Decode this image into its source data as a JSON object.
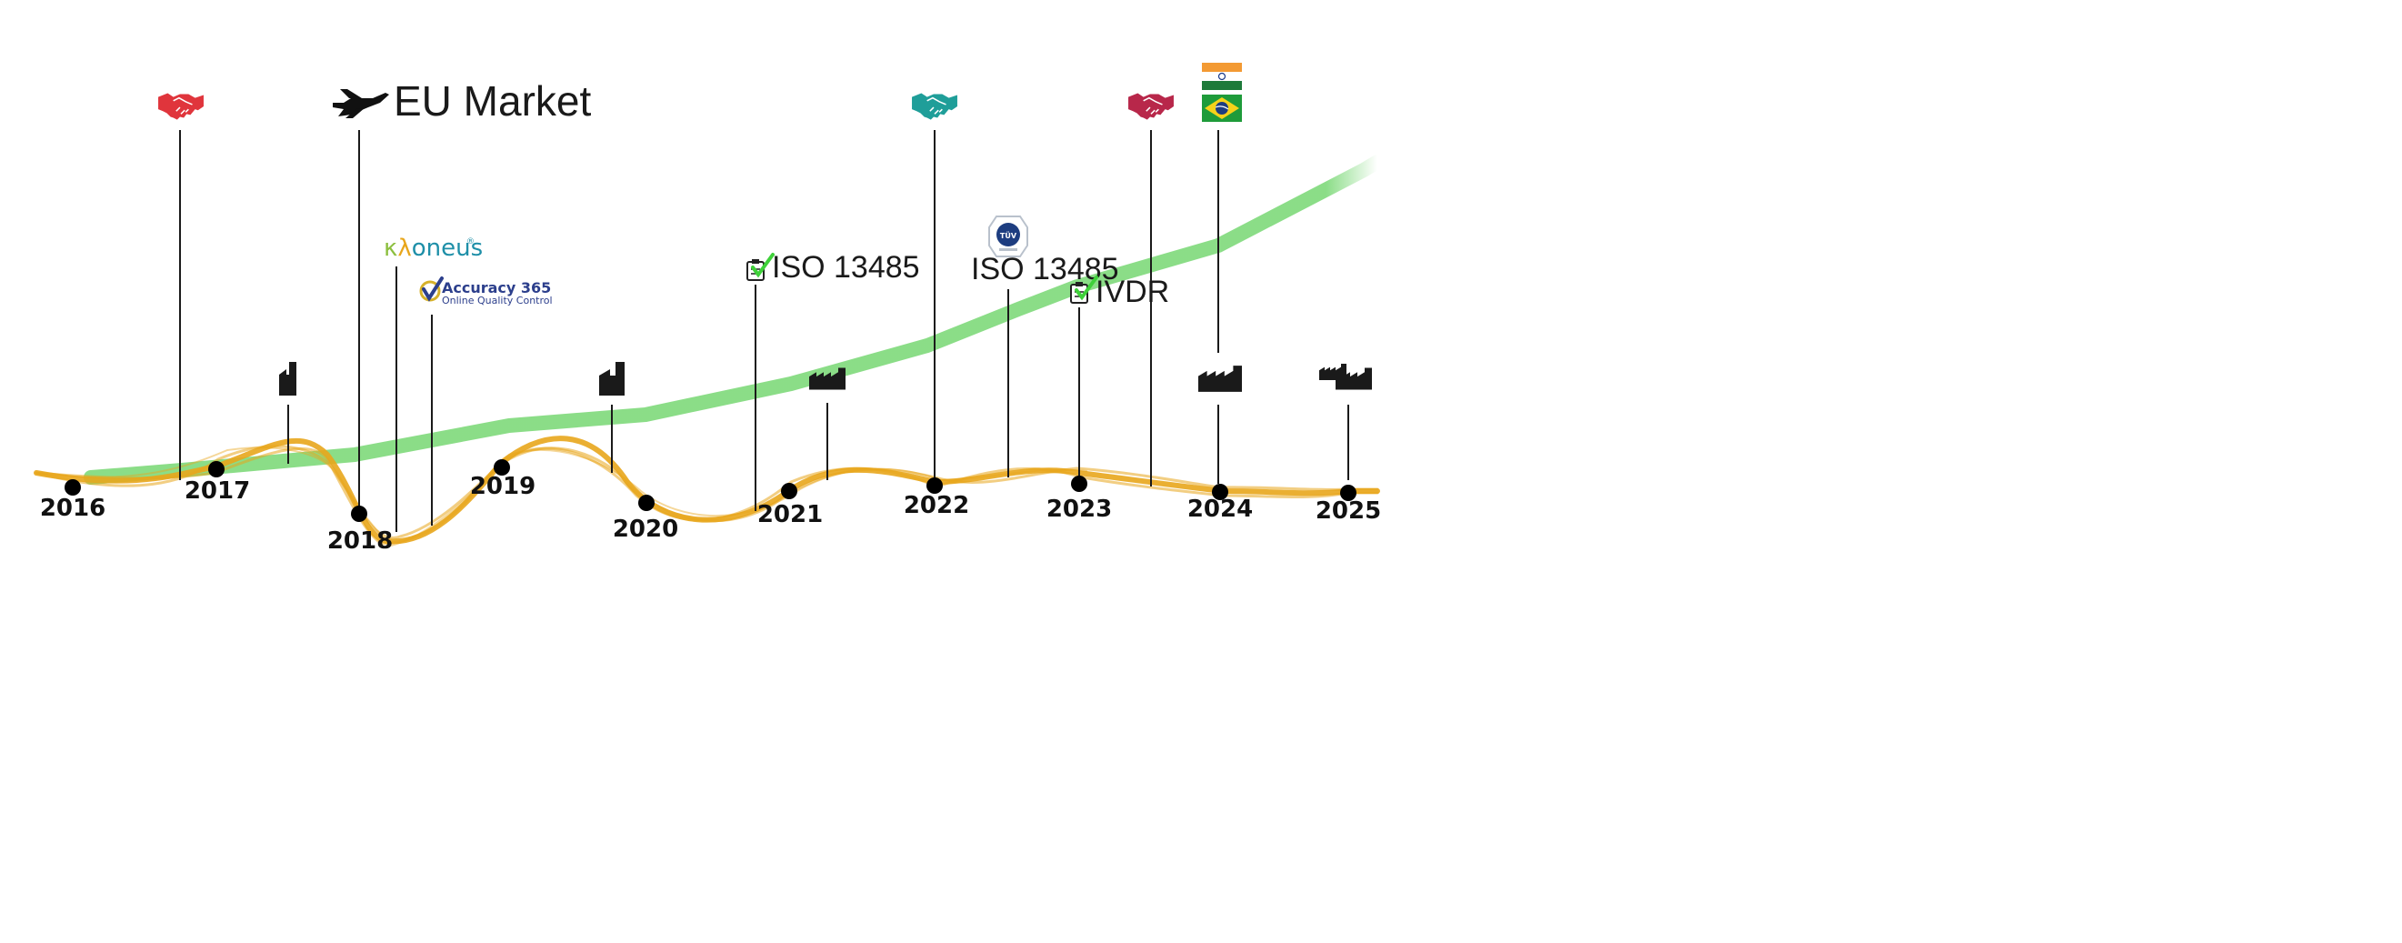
{
  "years": [
    "2016",
    "2017",
    "2018",
    "2019",
    "2020",
    "2021",
    "2022",
    "2023",
    "2024",
    "2025"
  ],
  "labels": {
    "eu_market": "EU Market",
    "iso_2021": "ISO 13485",
    "iso_tuv": "ISO 13485",
    "ivdr": "IVDR",
    "kloneus": "κλoneus",
    "accuracy_title": "Accuracy 365",
    "accuracy_sub": "Online Quality Control",
    "tuv_text": "TÜV"
  },
  "icons": {
    "handshake": "handshake-icon",
    "plane": "airplane-icon",
    "factory": "factory-icon",
    "clipboard_check": "clipboard-check-icon",
    "flag_india": "india-flag-icon",
    "flag_brazil": "brazil-flag-icon",
    "tuv": "tuv-seal-icon"
  },
  "colors": {
    "growth_line": "#7ed97a",
    "ribbon": "#e8a61c",
    "handshake_red": "#e0353c",
    "handshake_teal": "#1f9e99",
    "handshake_crimson": "#b8274a",
    "factory": "#1a1a1a",
    "check_green": "#3fd13a"
  }
}
